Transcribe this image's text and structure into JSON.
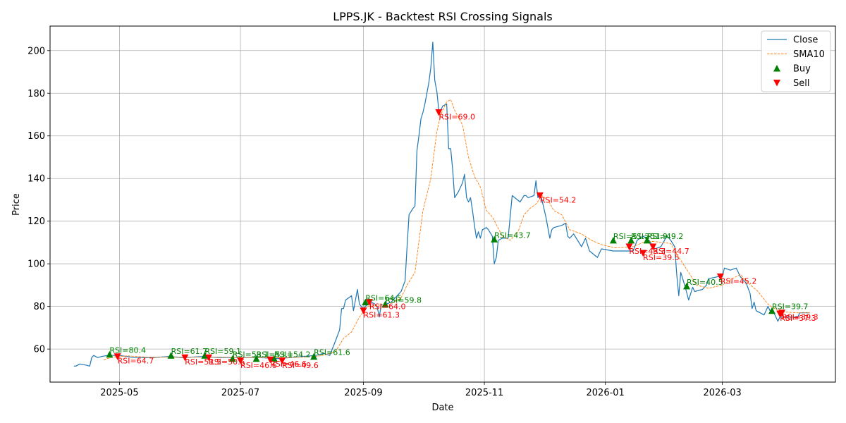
{
  "chart_data": {
    "type": "line",
    "title": "LPPS.JK - Backtest RSI Crossing Signals",
    "xlabel": "Date",
    "ylabel": "Price",
    "x_range": [
      "2025-03-27",
      "2026-04-27"
    ],
    "ylim": [
      44.5,
      211.5
    ],
    "x_ticks": [
      {
        "date": "2025-05-01",
        "label": "2025-05"
      },
      {
        "date": "2025-07-01",
        "label": "2025-07"
      },
      {
        "date": "2025-09-01",
        "label": "2025-09"
      },
      {
        "date": "2025-11-01",
        "label": "2025-11"
      },
      {
        "date": "2026-01-01",
        "label": "2026-01"
      },
      {
        "date": "2026-03-01",
        "label": "2026-03"
      }
    ],
    "y_ticks": [
      60,
      80,
      100,
      120,
      140,
      160,
      180,
      200
    ],
    "grid": true,
    "legend_position": "top-right",
    "legend": [
      "Close",
      "SMA10",
      "Buy",
      "Sell"
    ],
    "colors": {
      "close": "#1f77b4",
      "sma": "#ff7f0e",
      "buy": "#008000",
      "sell": "#ff0000",
      "grid": "#b0b0b0"
    },
    "series": [
      {
        "name": "Close",
        "style": "solid",
        "points": [
          [
            "2025-04-08",
            52
          ],
          [
            "2025-04-09",
            52
          ],
          [
            "2025-04-11",
            53
          ],
          [
            "2025-04-14",
            52.5
          ],
          [
            "2025-04-16",
            52
          ],
          [
            "2025-04-17",
            56
          ],
          [
            "2025-04-18",
            57
          ],
          [
            "2025-04-20",
            56
          ],
          [
            "2025-04-22",
            56.5
          ],
          [
            "2025-04-25",
            57
          ],
          [
            "2025-04-28",
            57
          ],
          [
            "2025-05-01",
            57
          ],
          [
            "2025-05-05",
            56.5
          ],
          [
            "2025-05-08",
            56
          ],
          [
            "2025-05-12",
            56
          ],
          [
            "2025-05-18",
            56
          ],
          [
            "2025-05-26",
            56.5
          ],
          [
            "2025-06-02",
            56
          ],
          [
            "2025-06-12",
            56.5
          ],
          [
            "2025-06-20",
            56
          ],
          [
            "2025-06-30",
            56
          ],
          [
            "2025-07-10",
            56
          ],
          [
            "2025-07-20",
            55.5
          ],
          [
            "2025-08-01",
            56.5
          ],
          [
            "2025-08-08",
            57
          ],
          [
            "2025-08-12",
            58
          ],
          [
            "2025-08-15",
            57
          ],
          [
            "2025-08-18",
            64
          ],
          [
            "2025-08-20",
            69
          ],
          [
            "2025-08-21",
            79
          ],
          [
            "2025-08-22",
            79
          ],
          [
            "2025-08-23",
            83
          ],
          [
            "2025-08-26",
            85
          ],
          [
            "2025-08-27",
            78
          ],
          [
            "2025-08-29",
            88
          ],
          [
            "2025-08-30",
            81
          ],
          [
            "2025-09-01",
            79
          ],
          [
            "2025-09-02",
            80
          ],
          [
            "2025-09-03",
            81
          ],
          [
            "2025-09-05",
            82
          ],
          [
            "2025-09-07",
            81
          ],
          [
            "2025-09-08",
            79.5
          ],
          [
            "2025-09-09",
            75
          ],
          [
            "2025-09-10",
            81
          ],
          [
            "2025-09-11",
            80.5
          ],
          [
            "2025-09-15",
            82
          ],
          [
            "2025-09-16",
            83
          ],
          [
            "2025-09-18",
            85
          ],
          [
            "2025-09-20",
            87
          ],
          [
            "2025-09-22",
            92
          ],
          [
            "2025-09-23",
            108
          ],
          [
            "2025-09-24",
            123
          ],
          [
            "2025-09-26",
            126
          ],
          [
            "2025-09-27",
            127
          ],
          [
            "2025-09-28",
            153
          ],
          [
            "2025-09-29",
            160
          ],
          [
            "2025-09-30",
            168
          ],
          [
            "2025-10-01",
            171
          ],
          [
            "2025-10-02",
            175
          ],
          [
            "2025-10-04",
            185
          ],
          [
            "2025-10-05",
            192
          ],
          [
            "2025-10-06",
            204
          ],
          [
            "2025-10-07",
            186
          ],
          [
            "2025-10-08",
            181
          ],
          [
            "2025-10-09",
            172
          ],
          [
            "2025-10-10",
            172
          ],
          [
            "2025-10-11",
            174
          ],
          [
            "2025-10-13",
            175
          ],
          [
            "2025-10-14",
            154
          ],
          [
            "2025-10-15",
            154
          ],
          [
            "2025-10-16",
            144
          ],
          [
            "2025-10-17",
            131
          ],
          [
            "2025-10-19",
            134
          ],
          [
            "2025-10-21",
            138
          ],
          [
            "2025-10-22",
            142
          ],
          [
            "2025-10-23",
            131
          ],
          [
            "2025-10-24",
            129
          ],
          [
            "2025-10-25",
            131
          ],
          [
            "2025-10-26",
            125
          ],
          [
            "2025-10-27",
            118
          ],
          [
            "2025-10-28",
            112
          ],
          [
            "2025-10-29",
            115
          ],
          [
            "2025-10-30",
            112
          ],
          [
            "2025-10-31",
            116
          ],
          [
            "2025-11-02",
            117
          ],
          [
            "2025-11-03",
            116
          ],
          [
            "2025-11-05",
            113
          ],
          [
            "2025-11-06",
            100
          ],
          [
            "2025-11-07",
            103
          ],
          [
            "2025-11-08",
            111
          ],
          [
            "2025-11-10",
            112
          ],
          [
            "2025-11-13",
            112
          ],
          [
            "2025-11-14",
            122
          ],
          [
            "2025-11-15",
            132
          ],
          [
            "2025-11-19",
            129
          ],
          [
            "2025-11-21",
            132
          ],
          [
            "2025-11-22",
            132
          ],
          [
            "2025-11-23",
            131
          ],
          [
            "2025-11-26",
            132
          ],
          [
            "2025-11-27",
            139
          ],
          [
            "2025-11-28",
            131
          ],
          [
            "2025-11-29",
            133
          ],
          [
            "2025-11-30",
            130
          ],
          [
            "2025-12-02",
            122
          ],
          [
            "2025-12-04",
            112
          ],
          [
            "2025-12-05",
            116
          ],
          [
            "2025-12-06",
            117
          ],
          [
            "2025-12-10",
            118
          ],
          [
            "2025-12-12",
            119
          ],
          [
            "2025-12-13",
            113
          ],
          [
            "2025-12-14",
            112
          ],
          [
            "2025-12-16",
            114
          ],
          [
            "2025-12-18",
            111
          ],
          [
            "2025-12-20",
            108
          ],
          [
            "2025-12-22",
            112
          ],
          [
            "2025-12-24",
            106
          ],
          [
            "2025-12-28",
            103
          ],
          [
            "2025-12-30",
            107
          ],
          [
            "2026-01-05",
            106
          ],
          [
            "2026-01-12",
            106
          ],
          [
            "2026-01-15",
            106
          ],
          [
            "2026-01-17",
            111
          ],
          [
            "2026-01-20",
            113
          ],
          [
            "2026-01-23",
            111
          ],
          [
            "2026-01-26",
            107
          ],
          [
            "2026-01-29",
            108
          ],
          [
            "2026-02-01",
            113
          ],
          [
            "2026-02-03",
            111
          ],
          [
            "2026-02-05",
            108
          ],
          [
            "2026-02-06",
            95
          ],
          [
            "2026-02-07",
            85
          ],
          [
            "2026-02-08",
            96
          ],
          [
            "2026-02-10",
            90
          ],
          [
            "2026-02-12",
            83
          ],
          [
            "2026-02-14",
            89
          ],
          [
            "2026-02-15",
            87
          ],
          [
            "2026-02-19",
            88
          ],
          [
            "2026-02-21",
            90
          ],
          [
            "2026-02-22",
            93
          ],
          [
            "2026-02-27",
            94
          ],
          [
            "2026-03-01",
            94
          ],
          [
            "2026-03-02",
            98
          ],
          [
            "2026-03-05",
            97
          ],
          [
            "2026-03-08",
            98
          ],
          [
            "2026-03-10",
            94
          ],
          [
            "2026-03-13",
            91
          ],
          [
            "2026-03-15",
            86
          ],
          [
            "2026-03-16",
            79
          ],
          [
            "2026-03-17",
            82
          ],
          [
            "2026-03-18",
            78
          ],
          [
            "2026-03-20",
            77
          ],
          [
            "2026-03-22",
            76
          ],
          [
            "2026-03-24",
            80
          ],
          [
            "2026-03-25",
            78
          ],
          [
            "2026-03-27",
            77
          ],
          [
            "2026-03-29",
            73
          ],
          [
            "2026-03-30",
            75
          ],
          [
            "2026-04-03",
            75
          ],
          [
            "2026-04-08",
            75
          ],
          [
            "2026-04-09",
            77
          ],
          [
            "2026-04-11",
            77
          ],
          [
            "2026-04-14",
            77
          ]
        ]
      },
      {
        "name": "SMA10",
        "style": "dashed",
        "points": [
          [
            "2025-04-23",
            55
          ],
          [
            "2025-04-28",
            56.3
          ],
          [
            "2025-05-05",
            56.8
          ],
          [
            "2025-05-15",
            56.2
          ],
          [
            "2025-06-01",
            56.2
          ],
          [
            "2025-06-20",
            56.2
          ],
          [
            "2025-07-10",
            55.9
          ],
          [
            "2025-07-25",
            56
          ],
          [
            "2025-08-08",
            56.5
          ],
          [
            "2025-08-14",
            57.5
          ],
          [
            "2025-08-18",
            59
          ],
          [
            "2025-08-22",
            65
          ],
          [
            "2025-08-26",
            68
          ],
          [
            "2025-08-30",
            75
          ],
          [
            "2025-09-03",
            80
          ],
          [
            "2025-09-08",
            80.5
          ],
          [
            "2025-09-14",
            80.8
          ],
          [
            "2025-09-20",
            84
          ],
          [
            "2025-09-23",
            90
          ],
          [
            "2025-09-27",
            96
          ],
          [
            "2025-10-01",
            125
          ],
          [
            "2025-10-05",
            140
          ],
          [
            "2025-10-08",
            162
          ],
          [
            "2025-10-10",
            170
          ],
          [
            "2025-10-13",
            176
          ],
          [
            "2025-10-15",
            177
          ],
          [
            "2025-10-17",
            172
          ],
          [
            "2025-10-21",
            165
          ],
          [
            "2025-10-24",
            150
          ],
          [
            "2025-10-27",
            141
          ],
          [
            "2025-10-30",
            136
          ],
          [
            "2025-11-02",
            125
          ],
          [
            "2025-11-05",
            122
          ],
          [
            "2025-11-10",
            113
          ],
          [
            "2025-11-14",
            111
          ],
          [
            "2025-11-18",
            115
          ],
          [
            "2025-11-21",
            123
          ],
          [
            "2025-11-24",
            126
          ],
          [
            "2025-11-27",
            128
          ],
          [
            "2025-11-30",
            132
          ],
          [
            "2025-12-03",
            130
          ],
          [
            "2025-12-06",
            125
          ],
          [
            "2025-12-10",
            123
          ],
          [
            "2025-12-14",
            116
          ],
          [
            "2025-12-20",
            114
          ],
          [
            "2025-12-25",
            111
          ],
          [
            "2025-12-30",
            109
          ],
          [
            "2026-01-06",
            107.5
          ],
          [
            "2026-01-15",
            108
          ],
          [
            "2026-01-20",
            110
          ],
          [
            "2026-01-25",
            110.5
          ],
          [
            "2026-02-03",
            109.5
          ],
          [
            "2026-02-07",
            103
          ],
          [
            "2026-02-12",
            96
          ],
          [
            "2026-02-16",
            90
          ],
          [
            "2026-02-22",
            88.5
          ],
          [
            "2026-03-01",
            90
          ],
          [
            "2026-03-06",
            93
          ],
          [
            "2026-03-10",
            95
          ],
          [
            "2026-03-14",
            91
          ],
          [
            "2026-03-19",
            87
          ],
          [
            "2026-03-24",
            81
          ],
          [
            "2026-03-30",
            77.5
          ],
          [
            "2026-04-08",
            77
          ],
          [
            "2026-04-14",
            77
          ]
        ]
      }
    ],
    "buy_signals": [
      {
        "date": "2025-04-26",
        "price": 57.5,
        "label": "RSI=80.4"
      },
      {
        "date": "2025-05-27",
        "price": 57.0,
        "label": "RSI=61.7"
      },
      {
        "date": "2025-06-13",
        "price": 57.0,
        "label": "RSI=59.1"
      },
      {
        "date": "2025-06-27",
        "price": 55.5,
        "label": "RSI=53.1"
      },
      {
        "date": "2025-07-09",
        "price": 55.5,
        "label": "RSI=53.1"
      },
      {
        "date": "2025-07-18",
        "price": 55.5,
        "label": "RSI=54.2"
      },
      {
        "date": "2025-08-07",
        "price": 56.5,
        "label": "RSI=61.6"
      },
      {
        "date": "2025-09-02",
        "price": 82.0,
        "label": "RSI=64.5"
      },
      {
        "date": "2025-09-12",
        "price": 81.0,
        "label": "RSI=59.8"
      },
      {
        "date": "2025-11-06",
        "price": 111.5,
        "label": "RSI=43.7"
      },
      {
        "date": "2026-01-05",
        "price": 111.0,
        "label": "RSI=51.2"
      },
      {
        "date": "2026-01-14",
        "price": 111.0,
        "label": "RSI=51.9"
      },
      {
        "date": "2026-01-22",
        "price": 111.0,
        "label": "RSI=49.2"
      },
      {
        "date": "2026-02-11",
        "price": 89.5,
        "label": "RSI=40.5"
      },
      {
        "date": "2026-03-26",
        "price": 78.0,
        "label": "RSI=39.7"
      }
    ],
    "sell_signals": [
      {
        "date": "2025-04-30",
        "price": 56.5,
        "label": "RSI=64.7"
      },
      {
        "date": "2025-06-03",
        "price": 56.0,
        "label": "RSI=51.5"
      },
      {
        "date": "2025-06-15",
        "price": 56.0,
        "label": "RSI=50.5"
      },
      {
        "date": "2025-07-01",
        "price": 54.5,
        "label": "RSI=46.6"
      },
      {
        "date": "2025-07-16",
        "price": 55.0,
        "label": "RSI=46.6"
      },
      {
        "date": "2025-07-22",
        "price": 54.5,
        "label": "RSI=49.6"
      },
      {
        "date": "2025-09-01",
        "price": 78.0,
        "label": "RSI=61.3"
      },
      {
        "date": "2025-09-04",
        "price": 82.0,
        "label": "RSI=64.0"
      },
      {
        "date": "2025-10-09",
        "price": 171.0,
        "label": "RSI=69.0"
      },
      {
        "date": "2025-11-29",
        "price": 132.0,
        "label": "RSI=54.2"
      },
      {
        "date": "2026-01-13",
        "price": 108.0,
        "label": "RSI=43.3"
      },
      {
        "date": "2026-01-20",
        "price": 105.0,
        "label": "RSI=39.5"
      },
      {
        "date": "2026-01-25",
        "price": 108.0,
        "label": "RSI=44.7"
      },
      {
        "date": "2026-02-28",
        "price": 94.0,
        "label": "RSI=45.2"
      },
      {
        "date": "2026-03-30",
        "price": 76.5,
        "label": "RSI=37.3"
      },
      {
        "date": "2026-03-31",
        "price": 77.0,
        "label": "RSI=39.3"
      }
    ]
  }
}
